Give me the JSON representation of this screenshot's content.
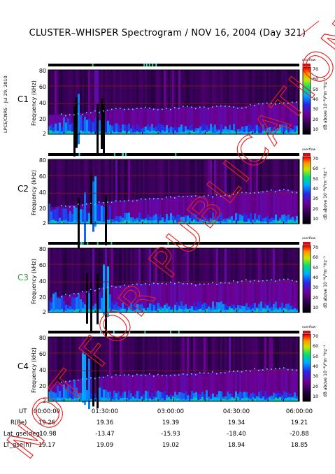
{
  "title": "CLUSTER–WHISPER Spectrogram / NOV 16, 2004 (Day 321)",
  "side_credit": "LPCE/CNRS - Jul 29, 2010",
  "watermark": "NOT FOR PUBLICATION",
  "colors": {
    "watermark": "#e8201c",
    "grid": "#8b1a1a",
    "c3_label": "#3fa03f",
    "trace": "#2ef0ff"
  },
  "chart_data": [
    {
      "type": "heatmap",
      "satellite": "C1",
      "label_color": "#000000",
      "ylabel": "Frequency (kHz)",
      "yticks": [
        2,
        20,
        40,
        60,
        80
      ],
      "ylim": [
        2,
        82
      ],
      "colorbar": {
        "label": "dB above 10⁻⁸V²m⁻¹Hz⁻¹",
        "ticks": [
          10,
          20,
          30,
          40,
          50,
          60,
          70
        ],
        "range": [
          5,
          72
        ],
        "top_text": "overflow"
      },
      "trace_khz": [
        26,
        27,
        27,
        28,
        30,
        31,
        33,
        34,
        34,
        35,
        34,
        34,
        35,
        36,
        36,
        35,
        37,
        38,
        36,
        37,
        40,
        41,
        40,
        42,
        42
      ]
    },
    {
      "type": "heatmap",
      "satellite": "C2",
      "label_color": "#000000",
      "ylabel": "Frequency (kHz)",
      "yticks": [
        2,
        20,
        40,
        60,
        80
      ],
      "ylim": [
        2,
        82
      ],
      "colorbar": {
        "label": "dB above 10⁻⁸V²m⁻¹Hz⁻¹",
        "ticks": [
          10,
          20,
          30,
          40,
          50,
          60,
          70
        ],
        "range": [
          5,
          72
        ],
        "top_text": "overflow"
      },
      "trace_khz": [
        22,
        24,
        25,
        26,
        28,
        29,
        30,
        31,
        32,
        33,
        34,
        34,
        36,
        37,
        38,
        36,
        37,
        38,
        40,
        41,
        42,
        43,
        44,
        44,
        42
      ]
    },
    {
      "type": "heatmap",
      "satellite": "C3",
      "label_color": "#3fa03f",
      "ylabel": "Frequency (kHz)",
      "yticks": [
        2,
        20,
        40,
        60,
        80
      ],
      "ylim": [
        2,
        82
      ],
      "colorbar": {
        "label": "dB above 10⁻⁸V²m⁻¹Hz⁻¹",
        "ticks": [
          10,
          20,
          30,
          40,
          50,
          60,
          70
        ],
        "range": [
          5,
          72
        ],
        "top_text": "overflow"
      },
      "trace_khz": [
        20,
        22,
        25,
        27,
        30,
        33,
        35,
        36,
        37,
        38,
        39,
        39,
        40,
        39,
        38,
        38,
        39,
        40,
        41,
        42,
        43,
        42,
        43,
        43,
        41
      ]
    },
    {
      "type": "heatmap",
      "satellite": "C4",
      "label_color": "#000000",
      "ylabel": "Frequency (kHz)",
      "yticks": [
        2,
        20,
        40,
        60,
        80
      ],
      "ylim": [
        2,
        82
      ],
      "colorbar": {
        "label": "dB above 10⁻⁸V²m⁻¹Hz⁻¹",
        "ticks": [
          10,
          20,
          30,
          40,
          50,
          60,
          70
        ],
        "range": [
          5,
          72
        ],
        "top_text": "overflow"
      },
      "trace_khz": [
        22,
        25,
        28,
        30,
        32,
        33,
        34,
        35,
        35,
        36,
        35,
        35,
        36,
        37,
        37,
        38,
        38,
        39,
        40,
        41,
        42,
        42,
        43,
        43,
        42
      ]
    }
  ],
  "ephemeris": {
    "rows": [
      {
        "label": "UT",
        "values": [
          "00:00:00",
          "01:30:00",
          "03:00:00",
          "04:30:00",
          "06:00:00"
        ]
      },
      {
        "label": "R(Re)",
        "values": [
          "19.26",
          "19.36",
          "19.39",
          "19.34",
          "19.21"
        ]
      },
      {
        "label": "Lat_gse(deg)",
        "values": [
          "-10.98",
          "-13.47",
          "-15.93",
          "-18.40",
          "-20.88"
        ]
      },
      {
        "label": "LT_gse(h)",
        "values": [
          "19.17",
          "19.09",
          "19.02",
          "18.94",
          "18.85"
        ]
      }
    ]
  }
}
